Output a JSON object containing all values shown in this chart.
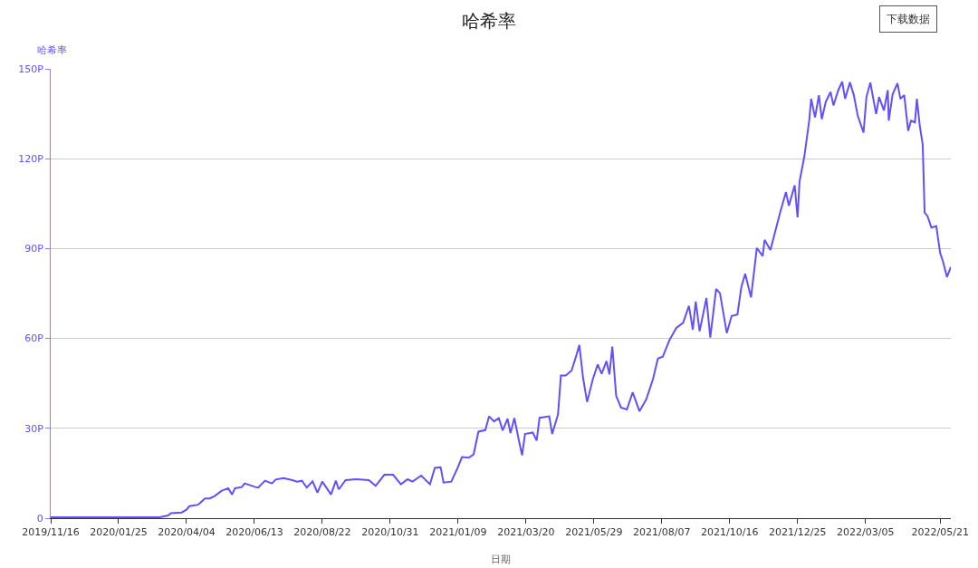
{
  "chart_data": {
    "type": "line",
    "title": "哈希率",
    "ylabel": "哈希率",
    "xlabel": "日期",
    "annotations": [
      "下载数据"
    ],
    "xlim": [
      "2019-11-16",
      "2022-06-01"
    ],
    "xticks": [
      {
        "value": "2019-11-16",
        "label": "2019/11/16"
      },
      {
        "value": "2020-01-25",
        "label": "2020/01/25"
      },
      {
        "value": "2020-04-04",
        "label": "2020/04/04"
      },
      {
        "value": "2020-06-13",
        "label": "2020/06/13"
      },
      {
        "value": "2020-08-22",
        "label": "2020/08/22"
      },
      {
        "value": "2020-10-31",
        "label": "2020/10/31"
      },
      {
        "value": "2021-01-09",
        "label": "2021/01/09"
      },
      {
        "value": "2021-03-20",
        "label": "2021/03/20"
      },
      {
        "value": "2021-05-29",
        "label": "2021/05/29"
      },
      {
        "value": "2021-08-07",
        "label": "2021/08/07"
      },
      {
        "value": "2021-10-16",
        "label": "2021/10/16"
      },
      {
        "value": "2021-12-25",
        "label": "2021/12/25"
      },
      {
        "value": "2022-03-05",
        "label": "2022/03/05"
      },
      {
        "value": "2022-05-21",
        "label": "2022/05/21"
      }
    ],
    "ylim": [
      0,
      150
    ],
    "yticks": [
      0,
      {
        "value": 30,
        "label": "30P"
      },
      {
        "value": 60,
        "label": "60P"
      },
      {
        "value": 90,
        "label": "90P"
      },
      {
        "value": 120,
        "label": "120P"
      },
      {
        "value": 150,
        "label": "150P"
      }
    ],
    "grid": "y",
    "marker": "none",
    "line_style": "solid",
    "x": [
      "2019-11-16",
      "2020-03-07",
      "2020-03-16",
      "2020-03-19",
      "2020-03-30",
      "2020-04-04",
      "2020-04-07",
      "2020-04-16",
      "2020-04-20",
      "2020-04-23",
      "2020-04-28",
      "2020-05-03",
      "2020-05-10",
      "2020-05-17",
      "2020-05-21",
      "2020-05-24",
      "2020-05-31",
      "2020-06-03",
      "2020-06-14",
      "2020-06-17",
      "2020-06-24",
      "2020-07-01",
      "2020-07-05",
      "2020-07-13",
      "2020-07-22",
      "2020-07-27",
      "2020-08-01",
      "2020-08-06",
      "2020-08-12",
      "2020-08-17",
      "2020-08-22",
      "2020-08-31",
      "2020-09-05",
      "2020-09-08",
      "2020-09-15",
      "2020-09-26",
      "2020-10-09",
      "2020-10-16",
      "2020-10-25",
      "2020-11-03",
      "2020-11-11",
      "2020-11-18",
      "2020-11-23",
      "2020-12-02",
      "2020-12-11",
      "2020-12-16",
      "2020-12-22",
      "2020-12-25",
      "2021-01-02",
      "2021-01-08",
      "2021-01-13",
      "2021-01-20",
      "2021-01-25",
      "2021-01-30",
      "2021-02-06",
      "2021-02-10",
      "2021-02-15",
      "2021-02-20",
      "2021-02-24",
      "2021-03-01",
      "2021-03-04",
      "2021-03-08",
      "2021-03-13",
      "2021-03-16",
      "2021-03-19",
      "2021-03-27",
      "2021-03-31",
      "2021-04-03",
      "2021-04-13",
      "2021-04-16",
      "2021-04-22",
      "2021-04-25",
      "2021-04-30",
      "2021-05-06",
      "2021-05-11",
      "2021-05-14",
      "2021-05-18",
      "2021-05-22",
      "2021-05-28",
      "2021-06-02",
      "2021-06-06",
      "2021-06-11",
      "2021-06-14",
      "2021-06-17",
      "2021-06-21",
      "2021-06-26",
      "2021-07-02",
      "2021-07-08",
      "2021-07-15",
      "2021-07-22",
      "2021-07-29",
      "2021-08-03",
      "2021-08-08",
      "2021-08-15",
      "2021-08-22",
      "2021-08-29",
      "2021-09-04",
      "2021-09-08",
      "2021-09-11",
      "2021-09-15",
      "2021-09-22",
      "2021-09-26",
      "2021-10-02",
      "2021-10-06",
      "2021-10-13",
      "2021-10-18",
      "2021-10-24",
      "2021-10-28",
      "2021-11-01",
      "2021-11-07",
      "2021-11-13",
      "2021-11-19",
      "2021-11-21",
      "2021-11-27",
      "2021-12-02",
      "2021-12-07",
      "2021-12-13",
      "2021-12-16",
      "2021-12-22",
      "2021-12-25",
      "2021-12-27",
      "2022-01-01",
      "2022-01-06",
      "2022-01-08",
      "2022-01-12",
      "2022-01-16",
      "2022-01-19",
      "2022-01-23",
      "2022-01-28",
      "2022-01-31",
      "2022-02-05",
      "2022-02-09",
      "2022-02-12",
      "2022-02-17",
      "2022-02-21",
      "2022-02-25",
      "2022-03-03",
      "2022-03-06",
      "2022-03-10",
      "2022-03-16",
      "2022-03-19",
      "2022-03-24",
      "2022-03-28",
      "2022-03-29",
      "2022-04-02",
      "2022-04-07",
      "2022-04-10",
      "2022-04-14",
      "2022-04-18",
      "2022-04-21",
      "2022-04-25",
      "2022-04-27",
      "2022-04-30",
      "2022-05-03",
      "2022-05-05",
      "2022-05-08",
      "2022-05-12",
      "2022-05-17",
      "2022-05-21",
      "2022-05-24",
      "2022-05-28",
      "2022-06-01"
    ],
    "series": [
      {
        "color": "#6050ff",
        "values": [
          0.3,
          0.3,
          0.9,
          1.7,
          1.9,
          2.8,
          4.0,
          4.5,
          5.7,
          6.6,
          6.6,
          7.4,
          9.1,
          10.0,
          7.9,
          10.0,
          10.4,
          11.6,
          10.4,
          10.2,
          12.5,
          11.6,
          12.9,
          13.4,
          12.7,
          12.2,
          12.5,
          10.2,
          12.3,
          8.5,
          12.2,
          7.9,
          12.5,
          9.6,
          12.7,
          13.0,
          12.7,
          10.8,
          14.5,
          14.5,
          11.3,
          13.0,
          12.2,
          14.2,
          11.3,
          16.8,
          17.0,
          11.9,
          12.2,
          16.4,
          20.4,
          20.2,
          21.3,
          28.9,
          29.4,
          34.0,
          32.3,
          33.4,
          29.3,
          33.2,
          28.4,
          33.4,
          25.5,
          21.0,
          28.1,
          28.6,
          25.9,
          33.5,
          34.0,
          28.1,
          34.6,
          47.6,
          47.6,
          49.3,
          54.4,
          57.8,
          46.5,
          38.8,
          46.5,
          51.3,
          48.2,
          52.4,
          48.0,
          57.3,
          40.8,
          36.9,
          36.3,
          42.0,
          35.7,
          39.7,
          46.5,
          53.3,
          53.9,
          59.5,
          63.5,
          65.2,
          70.9,
          62.9,
          72.3,
          62.4,
          73.5,
          60.3,
          76.5,
          75.1,
          61.8,
          67.5,
          68.0,
          77.1,
          81.6,
          73.7,
          90.2,
          87.5,
          92.9,
          89.5,
          95.8,
          102.0,
          108.9,
          104.3,
          111.1,
          100.4,
          112.3,
          120.8,
          132.7,
          140.0,
          133.8,
          141.2,
          133.2,
          138.9,
          142.3,
          137.8,
          142.9,
          145.7,
          140.0,
          145.5,
          141.2,
          134.4,
          128.7,
          140.6,
          145.4,
          134.9,
          140.6,
          136.1,
          142.9,
          132.7,
          141.5,
          145.2,
          140.0,
          141.2,
          129.3,
          132.7,
          132.1,
          140.0,
          131.0,
          124.7,
          102.0,
          100.8,
          97.0,
          97.5,
          88.5,
          85.6,
          80.5,
          83.9
        ]
      }
    ]
  }
}
